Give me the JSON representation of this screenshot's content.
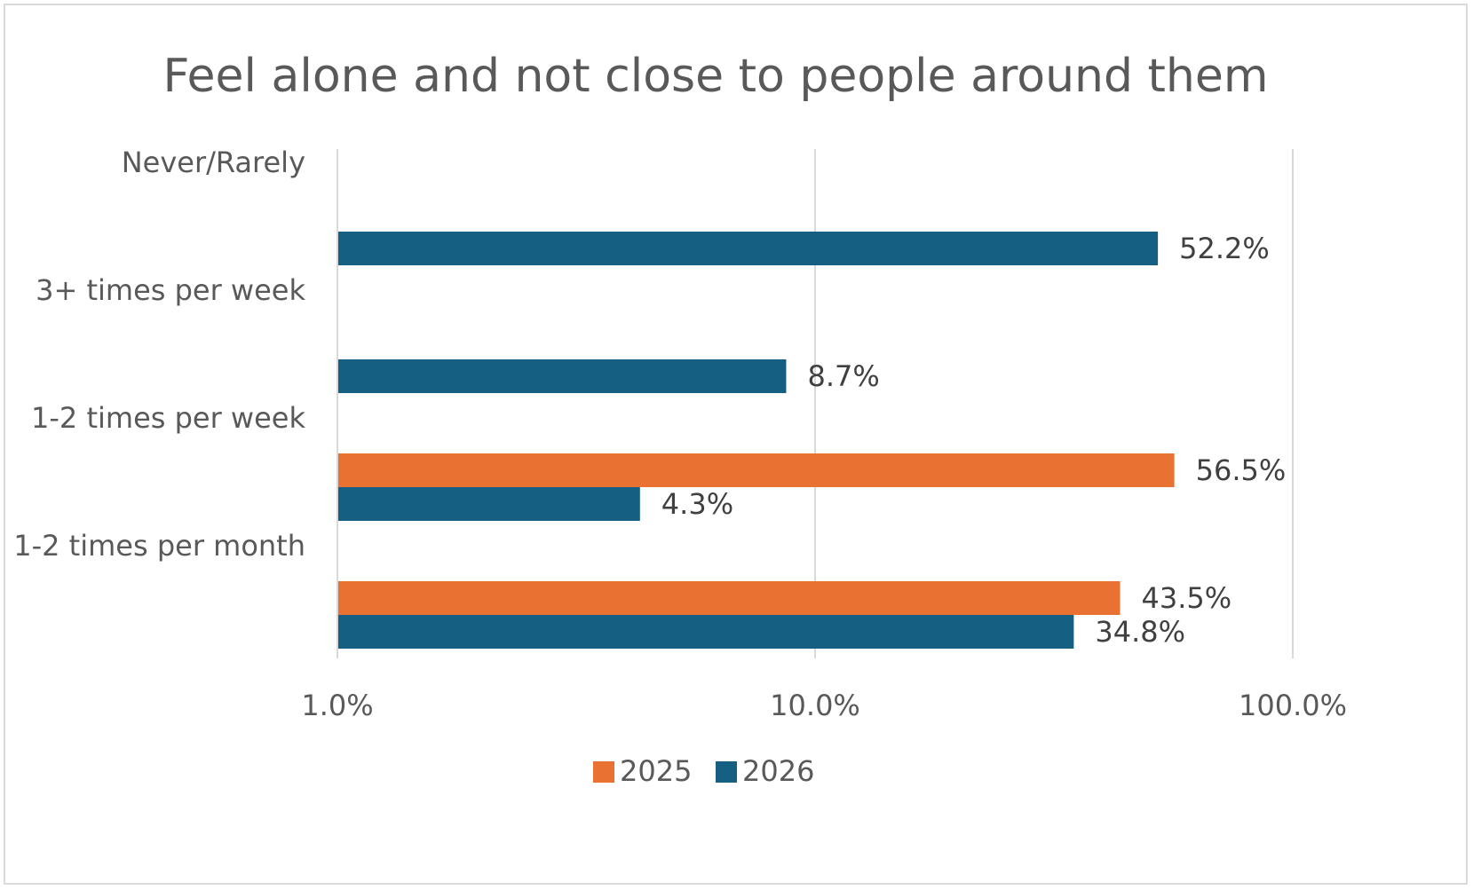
{
  "chart_data": {
    "type": "bar",
    "orientation": "horizontal",
    "title": "Feel alone and not close to people around them",
    "categories": [
      "Never/Rarely",
      "3+ times per week",
      "1-2 times per week",
      "1-2 times per month"
    ],
    "series": [
      {
        "name": "2025",
        "color": "#E97132",
        "values": [
          null,
          null,
          56.5,
          43.5
        ],
        "labels": [
          "",
          "",
          "56.5%",
          "43.5%"
        ]
      },
      {
        "name": "2026",
        "color": "#156082",
        "values": [
          52.2,
          8.7,
          4.3,
          34.8
        ],
        "labels": [
          "52.2%",
          "8.7%",
          "4.3%",
          "34.8%"
        ]
      }
    ],
    "x_axis": {
      "scale": "log",
      "range": [
        1,
        100
      ],
      "ticks": [
        1,
        10,
        100
      ],
      "tick_labels": [
        "1.0%",
        "10.0%",
        "100.0%"
      ],
      "gridlines": true
    },
    "xlabel": "",
    "ylabel": "",
    "legend": {
      "position": "bottom",
      "entries": [
        "2025",
        "2026"
      ]
    }
  }
}
